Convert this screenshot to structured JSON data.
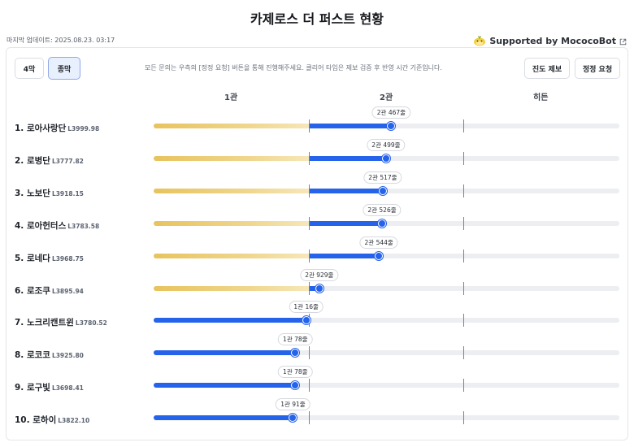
{
  "title": "카제로스 더 퍼스트 현황",
  "updated": "마지막 업데이트: 2025.08.23. 03:17",
  "supported": "Supported by MococoBot",
  "tabs": [
    {
      "label": "4막",
      "active": false
    },
    {
      "label": "종막",
      "active": true
    }
  ],
  "notice": "모든 문의는 우측의 [정정 요청] 버튼을 통해 진행해주세요. 클리어 타임은 제보 검증 후 반영 시간 기준입니다.",
  "actions": {
    "report": "진도 제보",
    "correction": "정정 요청"
  },
  "columns": [
    "1관",
    "2관",
    "히든"
  ],
  "colors": {
    "gold": "#e8c35e",
    "blue": "#2563eb",
    "track": "#eceef2"
  },
  "rows": [
    {
      "name": "1. 로아사랑단",
      "level": "L3999.98",
      "stage": 2,
      "progress": 0.535,
      "tag": "2관 467줄"
    },
    {
      "name": "2. 로병단",
      "level": "L3777.82",
      "stage": 2,
      "progress": 0.501,
      "tag": "2관 499줄"
    },
    {
      "name": "3. 노보단",
      "level": "L3918.15",
      "stage": 2,
      "progress": 0.48,
      "tag": "2관 517줄"
    },
    {
      "name": "4. 로아헌터스",
      "level": "L3783.58",
      "stage": 2,
      "progress": 0.475,
      "tag": "2관 526줄"
    },
    {
      "name": "5. 로네다",
      "level": "L3968.75",
      "stage": 2,
      "progress": 0.455,
      "tag": "2관 544줄"
    },
    {
      "name": "6. 로조쿠",
      "level": "L3895.94",
      "stage": 2,
      "progress": 0.07,
      "tag": "2관 929줄"
    },
    {
      "name": "7. 노크리캔트윈",
      "level": "L3780.52",
      "stage": 1,
      "progress": 0.985,
      "tag": "1관 16줄"
    },
    {
      "name": "8. 로코코",
      "level": "L3925.80",
      "stage": 1,
      "progress": 0.915,
      "tag": "1관 78줄"
    },
    {
      "name": "9. 로구빛",
      "level": "L3698.41",
      "stage": 1,
      "progress": 0.915,
      "tag": "1관 78줄"
    },
    {
      "name": "10. 로하이",
      "level": "L3822.10",
      "stage": 1,
      "progress": 0.9,
      "tag": "1관 91줄"
    }
  ]
}
